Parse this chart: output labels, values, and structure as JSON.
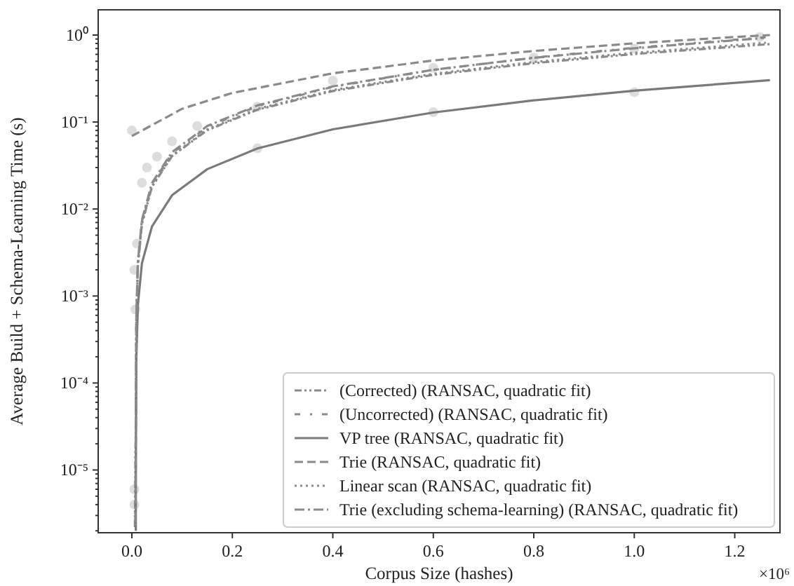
{
  "chart_data": {
    "type": "line",
    "xlabel": "Corpus Size (hashes)",
    "ylabel": "Average Build + Schema-Learning Time (s)",
    "annotations": [
      "×10⁶"
    ],
    "log": "y",
    "grid": false,
    "legend": "bottom right",
    "xlim": [
      -0.067,
      1.29
    ],
    "xticks": [
      {
        "value": 0,
        "label": "0.0"
      },
      0.2,
      0.4,
      0.6,
      0.8,
      {
        "value": 1,
        "label": "1.0"
      },
      1.2
    ],
    "ylim": [
      1.9e-06,
      1.95
    ],
    "yticks": [
      {
        "value": 1e-05,
        "label": "10⁻⁵"
      },
      {
        "value": 0.0001,
        "label": "10⁻⁴"
      },
      {
        "value": 0.001,
        "label": "10⁻³"
      },
      {
        "value": 0.01,
        "label": "10⁻²"
      },
      {
        "value": 0.1,
        "label": "10⁻¹"
      },
      {
        "value": 1,
        "label": "10⁰"
      }
    ],
    "series": [
      {
        "type": "scatter",
        "marker": "circle",
        "color": "#d4d4d4",
        "x": [
          0.005,
          0.005,
          0.007,
          0.005,
          0.01,
          0.02,
          0.03,
          0.05,
          0.08,
          0.13,
          0.25,
          0.4,
          0.6,
          0.8,
          1.0,
          1.25,
          0.0,
          0.25,
          0.6,
          1.0
        ],
        "values": [
          4e-06,
          6e-06,
          0.0007,
          0.002,
          0.004,
          0.02,
          0.03,
          0.04,
          0.06,
          0.09,
          0.15,
          0.3,
          0.42,
          0.55,
          0.7,
          0.95,
          0.08,
          0.05,
          0.13,
          0.22
        ]
      },
      {
        "name": "(Corrected) (RANSAC, quadratic fit)",
        "color": "#8a8a8a",
        "line_style": "dashdotdot",
        "x": [
          0.006,
          0.0081,
          0.009,
          0.012,
          0.02,
          0.04,
          0.08,
          0.15,
          0.25,
          0.4,
          0.6,
          0.8,
          1.0,
          1.27
        ],
        "values": [
          2.2e-06,
          5.6e-05,
          0.00056,
          0.00224,
          0.00673,
          0.018,
          0.0406,
          0.0805,
          0.1385,
          0.2272,
          0.349,
          0.4749,
          0.6047,
          0.7863
        ]
      },
      {
        "name": "(Uncorrected) (RANSAC, quadratic fit)",
        "color": "#8a8a8a",
        "line_style": "loosedashdot",
        "x": [
          0.0075,
          0.0081,
          0.009,
          0.012,
          0.02,
          0.04,
          0.08,
          0.15,
          0.25,
          0.4,
          0.6,
          0.8,
          1.0,
          1.266
        ],
        "values": [
          2.4e-06,
          6e-05,
          0.0006,
          0.0024,
          0.00722,
          0.0193,
          0.0438,
          0.0876,
          0.1522,
          0.2536,
          0.3973,
          0.5505,
          0.7133,
          0.9483
        ]
      },
      {
        "name": "VP tree (RANSAC, quadratic fit)",
        "color": "#7a7a7a",
        "line_style": "solid",
        "x": [
          0.0079,
          0.0081,
          0.009,
          0.012,
          0.02,
          0.04,
          0.08,
          0.15,
          0.25,
          0.4,
          0.6,
          0.8,
          1.0,
          1.27
        ],
        "values": [
          2e-06,
          2e-05,
          0.0002,
          0.00079,
          0.00237,
          0.0063,
          0.0144,
          0.0287,
          0.0497,
          0.0825,
          0.1286,
          0.1774,
          0.229,
          0.303
        ]
      },
      {
        "name": "Trie (RANSAC, quadratic fit)",
        "color": "#8a8a8a",
        "line_style": "dashed",
        "x": [
          0,
          0.1,
          0.2,
          0.4,
          0.6,
          0.8,
          1.0,
          1.2,
          1.27
        ],
        "values": [
          0.069,
          0.142,
          0.216,
          0.363,
          0.51,
          0.656,
          0.803,
          0.95,
          1.0
        ]
      },
      {
        "name": "Linear scan (RANSAC, quadratic fit)",
        "color": "#8a8a8a",
        "line_style": "dotted",
        "x": [
          0.0068,
          0.0081,
          0.009,
          0.012,
          0.02,
          0.04,
          0.08,
          0.15,
          0.25,
          0.4,
          0.6,
          0.8,
          1.0,
          1.262
        ],
        "values": [
          2.3e-06,
          5.7e-05,
          0.00057,
          0.00228,
          0.00685,
          0.0183,
          0.0413,
          0.0821,
          0.1415,
          0.2327,
          0.3585,
          0.4891,
          0.6245,
          0.8149
        ]
      },
      {
        "name": "Trie (excluding schema-learning) (RANSAC, quadratic fit)",
        "color": "#8a8a8a",
        "line_style": "dashdot",
        "x": [
          0.0072,
          0.0081,
          0.009,
          0.012,
          0.02,
          0.04,
          0.08,
          0.15,
          0.25,
          0.4,
          0.6,
          0.8,
          1.0,
          1.258
        ],
        "values": [
          2.5e-06,
          6.2e-05,
          0.00062,
          0.00248,
          0.00745,
          0.0199,
          0.0451,
          0.0899,
          0.1553,
          0.2569,
          0.3986,
          0.5475,
          0.7036,
          0.9257
        ]
      }
    ]
  }
}
